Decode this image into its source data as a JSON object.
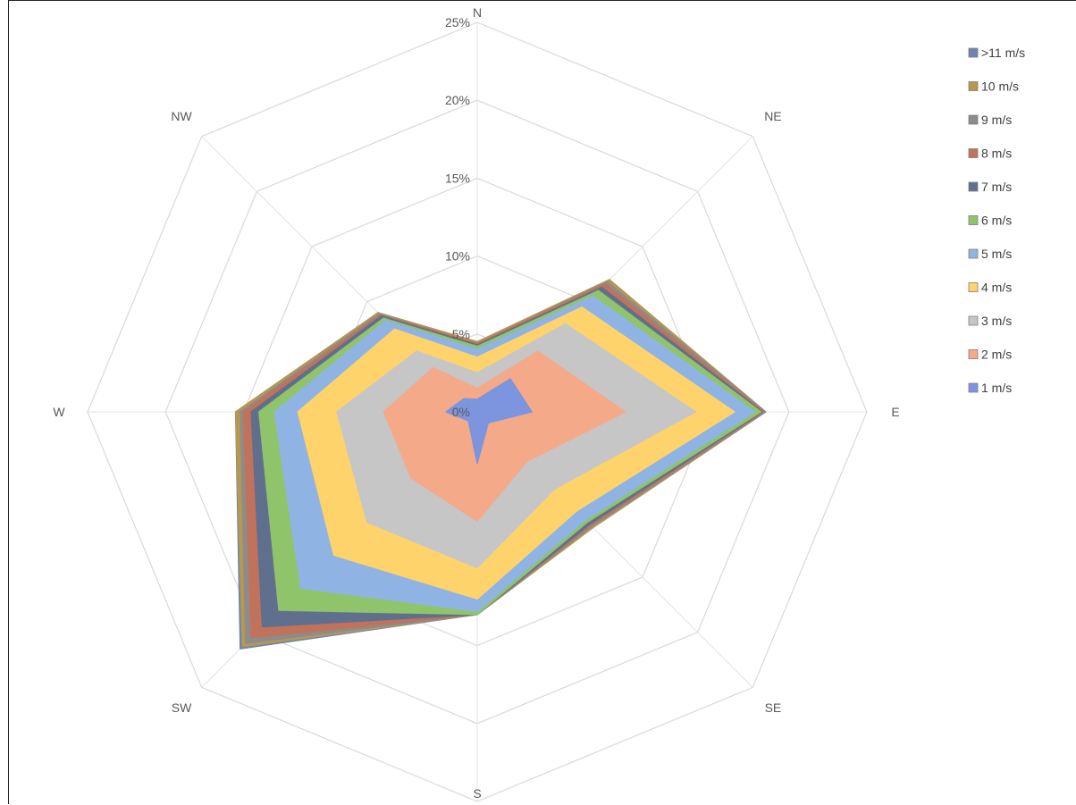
{
  "chart_data": {
    "type": "radar",
    "title": "",
    "categories": [
      "N",
      "NE",
      "E",
      "SE",
      "S",
      "SW",
      "W",
      "NW"
    ],
    "axis_ticks": [
      "0%",
      "5%",
      "10%",
      "15%",
      "20%",
      "25%"
    ],
    "rlim": [
      0,
      25
    ],
    "grid": true,
    "legend_position": "top-right",
    "series": [
      {
        "name": ">11  m/s",
        "color": "#6f84b0",
        "values": [
          4.5,
          12.0,
          18.5,
          10.5,
          13.0,
          21.5,
          15.5,
          9.0
        ]
      },
      {
        "name": "10  m/s",
        "color": "#b8984e",
        "values": [
          4.5,
          12.0,
          18.5,
          10.5,
          13.0,
          21.3,
          15.5,
          9.0
        ]
      },
      {
        "name": "9  m/s",
        "color": "#8c8c8c",
        "values": [
          4.4,
          11.8,
          18.5,
          10.4,
          13.0,
          21.0,
          15.2,
          8.9
        ]
      },
      {
        "name": "8  m/s",
        "color": "#c0735a",
        "values": [
          4.4,
          11.6,
          18.4,
          10.3,
          13.0,
          20.5,
          15.0,
          8.8
        ]
      },
      {
        "name": "7  m/s",
        "color": "#616f8e",
        "values": [
          4.3,
          11.3,
          18.3,
          10.2,
          13.0,
          19.5,
          14.5,
          8.7
        ]
      },
      {
        "name": "6  m/s",
        "color": "#8fc46a",
        "values": [
          4.2,
          11.0,
          18.2,
          10.0,
          13.0,
          18.0,
          14.0,
          8.5
        ]
      },
      {
        "name": "5  m/s",
        "color": "#8fb4e3",
        "values": [
          4.0,
          10.5,
          17.8,
          9.8,
          12.8,
          16.0,
          13.0,
          8.3
        ]
      },
      {
        "name": "4  m/s",
        "color": "#ffd36b",
        "values": [
          3.5,
          9.5,
          16.5,
          9.0,
          12.0,
          13.0,
          11.5,
          7.5
        ]
      },
      {
        "name": "3  m/s",
        "color": "#c6c6c6",
        "values": [
          2.5,
          8.0,
          14.0,
          7.0,
          10.0,
          10.0,
          9.0,
          5.5
        ]
      },
      {
        "name": "2  m/s",
        "color": "#f4a989",
        "values": [
          1.5,
          5.5,
          9.5,
          4.5,
          7.0,
          6.0,
          6.0,
          4.0
        ]
      },
      {
        "name": "1 m/s",
        "color": "#7c95de",
        "values": [
          0.8,
          3.0,
          3.5,
          1.0,
          3.3,
          0.8,
          2.0,
          1.2
        ]
      }
    ]
  }
}
